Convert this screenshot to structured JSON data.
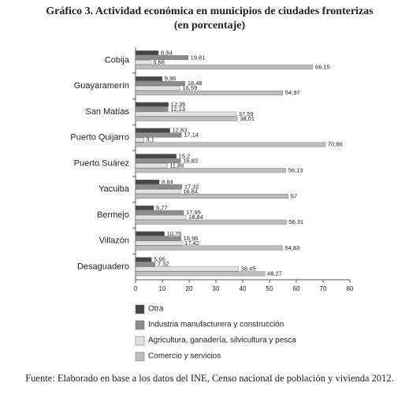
{
  "chart_data": {
    "type": "hbar",
    "title": "Gráfico 3. Actividad económica en municipios de ciudades fronterizas",
    "subtitle": "(en porcentaje)",
    "source": "Fuente: Elaborado en base a los datos del INE, Censo nacional de población y vivienda 2012.",
    "categories": [
      "Cobija",
      "Guayaramerín",
      "San Matías",
      "Puerto Quijarro",
      "Puerto Suárez",
      "Yacuiba",
      "Bermejo",
      "Villazón",
      "Desaguadero"
    ],
    "series": [
      {
        "name": "Otra",
        "color": "#474747",
        "values": [
          8.54,
          9.96,
          12.26,
          12.83,
          15.2,
          8.84,
          6.77,
          10.76,
          5.95
        ],
        "value_labels": [
          "8,54",
          "9,96",
          "12,26",
          "12,83",
          "15,2",
          "8,84",
          "6,77",
          "10,76",
          "5,95"
        ]
      },
      {
        "name": "Industria manufacturera y construcción",
        "color": "#8c8c8c",
        "values": [
          19.61,
          18.48,
          12.13,
          17.14,
          16.83,
          17.32,
          17.95,
          16.96,
          7.32
        ],
        "value_labels": [
          "19,61",
          "18,48",
          "12,13",
          "17,14",
          "16,83",
          "17,32",
          "17,95",
          "16,96",
          "7,32"
        ]
      },
      {
        "name": "Agricultura, ganadería, silvicultura y pesca",
        "color": "#e2e2e2",
        "values": [
          5.68,
          16.59,
          37.59,
          3.1,
          11.86,
          16.84,
          18.84,
          17.42,
          38.45
        ],
        "value_labels": [
          "5,68",
          "16,59",
          "37,59",
          "3,1",
          "11,86",
          "16,84",
          "18,84",
          "17,42",
          "38,45"
        ]
      },
      {
        "name": "Comercio y servicios",
        "color": "#bdbdbd",
        "values": [
          66.15,
          54.97,
          38.01,
          70.86,
          56.13,
          57,
          56.31,
          54.83,
          48.27
        ],
        "value_labels": [
          "66,15",
          "54,97",
          "38,01",
          "70,86",
          "56,13",
          "57",
          "56,31",
          "54,83",
          "48,27"
        ]
      }
    ],
    "xlim": [
      0,
      80
    ],
    "xticks": [
      0,
      10,
      20,
      30,
      40,
      50,
      60,
      70,
      80
    ]
  }
}
